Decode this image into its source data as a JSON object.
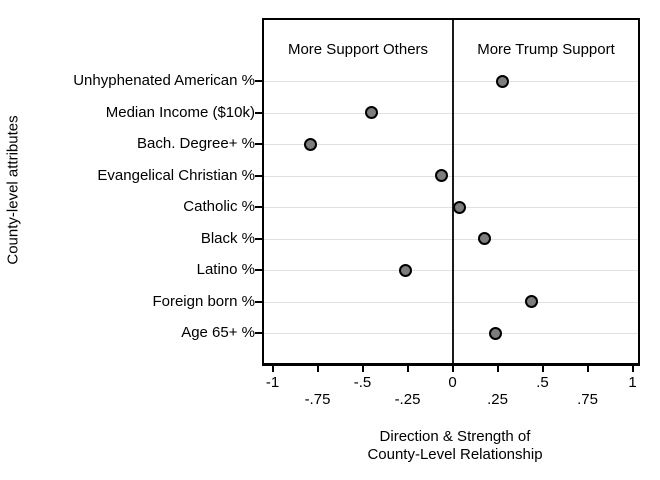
{
  "chart_data": {
    "type": "scatter",
    "subtype": "horizontal-dot-plot",
    "categories": [
      "Unhyphenated American %",
      "Median Income ($10k)",
      "Bach. Degree+ %",
      "Evangelical Christian %",
      "Catholic %",
      "Black %",
      "Latino %",
      "Foreign born %",
      "Age 65+ %"
    ],
    "values": [
      0.28,
      -0.45,
      -0.79,
      -0.06,
      0.04,
      0.18,
      -0.26,
      0.44,
      0.24
    ],
    "ylabel": "County-level attributes",
    "xlabel_line1": "Direction & Strength of",
    "xlabel_line2": "County-Level Relationship",
    "xlim": [
      -1.05,
      1.05
    ],
    "x_ticks": [
      {
        "label": "-1",
        "value": -1,
        "row": 1
      },
      {
        "label": "-.75",
        "value": -0.75,
        "row": 2
      },
      {
        "label": "-.5",
        "value": -0.5,
        "row": 1
      },
      {
        "label": "-.25",
        "value": -0.25,
        "row": 2
      },
      {
        "label": "0",
        "value": 0,
        "row": 1
      },
      {
        "label": ".25",
        "value": 0.25,
        "row": 2
      },
      {
        "label": ".5",
        "value": 0.5,
        "row": 1
      },
      {
        "label": ".75",
        "value": 0.75,
        "row": 2
      },
      {
        "label": "1",
        "value": 1,
        "row": 1
      }
    ],
    "annotations": {
      "left": "More Support Others",
      "right": "More Trump Support"
    },
    "reference_line_x": 0,
    "grid": true,
    "legend": "none",
    "colors": {
      "marker_fill": "#7d7d7d",
      "marker_stroke": "#000000",
      "gridline": "#e0e0e0",
      "axis": "#000000",
      "text": "#000000",
      "background": "#ffffff"
    }
  }
}
